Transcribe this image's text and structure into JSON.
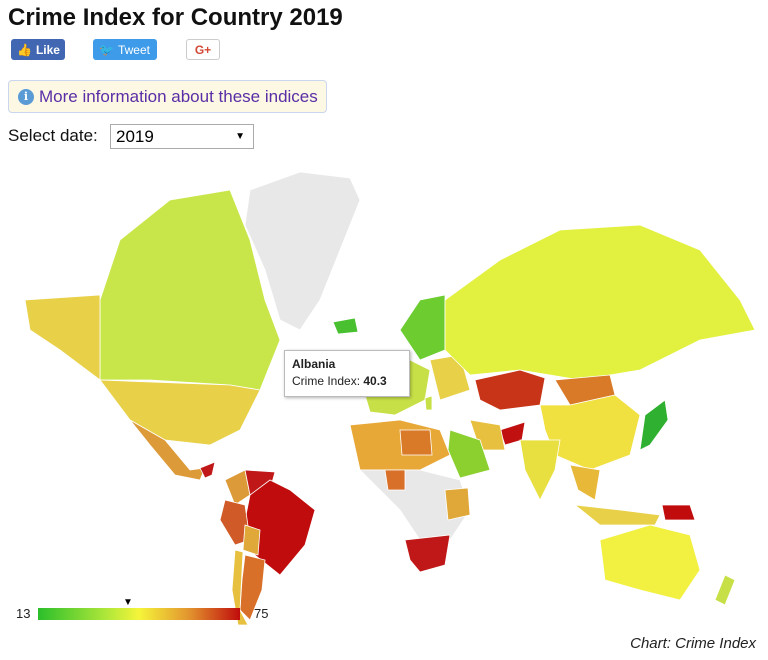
{
  "title": "Crime Index for Country 2019",
  "social": {
    "like": "Like",
    "tweet": "Tweet",
    "gplus": "G+"
  },
  "info_link": "More information about these indices",
  "date_select": {
    "label": "Select date:",
    "value": "2019"
  },
  "tooltip": {
    "country": "Albania",
    "metric_label": "Crime Index:",
    "value": "40.3"
  },
  "legend": {
    "min": "13",
    "max": "75",
    "marker_value": 40.3
  },
  "credit": "Chart: Crime Index",
  "colors": {
    "no_data": "#e8e8e8",
    "low": "#2bbf2b",
    "mid": "#f5f53a",
    "high": "#c00c0c"
  }
}
